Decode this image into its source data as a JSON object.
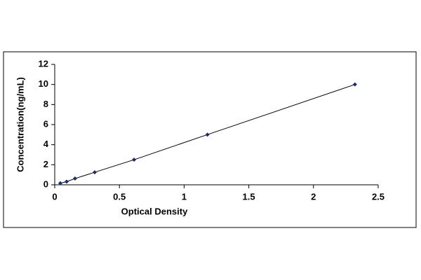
{
  "chart_data": {
    "type": "scatter",
    "x_label": "Optical Density",
    "y_label": "Concentration(ng/mL)",
    "x": [
      0.043,
      0.092,
      0.157,
      0.309,
      0.613,
      1.18,
      2.32
    ],
    "values": [
      0.156,
      0.312,
      0.625,
      1.25,
      2.5,
      5,
      10
    ],
    "color": "#1f2a6b",
    "line": true,
    "line_color": "#000000",
    "xlim": [
      0,
      2.5
    ],
    "xticks": [
      0,
      0.5,
      1,
      1.5,
      2,
      2.5
    ],
    "ylim": [
      0,
      12
    ],
    "yticks": [
      0,
      2,
      4,
      6,
      8,
      10,
      12
    ],
    "grid": false
  }
}
